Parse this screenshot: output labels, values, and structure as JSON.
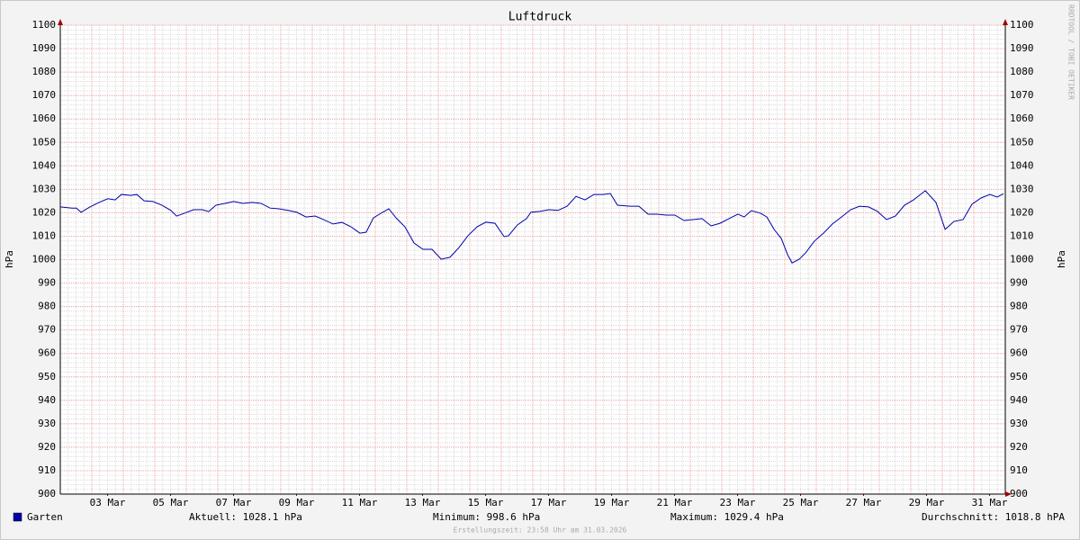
{
  "chart_data": {
    "type": "line",
    "title": "Luftdruck",
    "ylabel": "hPa",
    "watermark": "RRDTOOL / TOBI OETIKER",
    "footer": "Erstellungszeit: 23:58 Uhr am 31.03.2026",
    "stats": [
      "Aktuell: 1028.1 hPa",
      "Minimum: 998.6 hPa",
      "Maximum: 1029.4 hPa",
      "Durchschnitt: 1018.8 hPA"
    ],
    "xlim": [
      2,
      32
    ],
    "xticks": [
      {
        "value": 3.5,
        "label": "03 Mar"
      },
      {
        "value": 5.5,
        "label": "05 Mar"
      },
      {
        "value": 7.5,
        "label": "07 Mar"
      },
      {
        "value": 9.5,
        "label": "09 Mar"
      },
      {
        "value": 11.5,
        "label": "11 Mar"
      },
      {
        "value": 13.5,
        "label": "13 Mar"
      },
      {
        "value": 15.5,
        "label": "15 Mar"
      },
      {
        "value": 17.5,
        "label": "17 Mar"
      },
      {
        "value": 19.5,
        "label": "19 Mar"
      },
      {
        "value": 21.5,
        "label": "21 Mar"
      },
      {
        "value": 23.5,
        "label": "23 Mar"
      },
      {
        "value": 25.5,
        "label": "25 Mar"
      },
      {
        "value": 27.5,
        "label": "27 Mar"
      },
      {
        "value": 29.5,
        "label": "29 Mar"
      },
      {
        "value": 31.5,
        "label": "31 Mar"
      }
    ],
    "ylim": [
      900,
      1100
    ],
    "yticks": [
      900,
      910,
      920,
      930,
      940,
      950,
      960,
      970,
      980,
      990,
      1000,
      1010,
      1020,
      1030,
      1040,
      1050,
      1060,
      1070,
      1080,
      1090,
      1100
    ],
    "grid": true,
    "x": [
      2.0,
      2.37,
      2.51,
      2.66,
      2.94,
      3.23,
      3.51,
      3.74,
      3.94,
      4.23,
      4.43,
      4.66,
      4.94,
      5.23,
      5.51,
      5.69,
      5.94,
      6.23,
      6.51,
      6.71,
      6.94,
      7.23,
      7.51,
      7.8,
      8.09,
      8.37,
      8.66,
      8.94,
      9.23,
      9.51,
      9.8,
      10.09,
      10.37,
      10.66,
      10.94,
      11.23,
      11.51,
      11.71,
      11.94,
      12.23,
      12.43,
      12.66,
      12.94,
      13.23,
      13.51,
      13.8,
      14.09,
      14.37,
      14.66,
      14.94,
      15.23,
      15.51,
      15.8,
      16.09,
      16.23,
      16.51,
      16.8,
      16.94,
      17.23,
      17.51,
      17.8,
      18.09,
      18.37,
      18.66,
      18.94,
      19.23,
      19.46,
      19.69,
      20.09,
      20.37,
      20.66,
      20.94,
      21.23,
      21.51,
      21.8,
      22.09,
      22.37,
      22.66,
      22.94,
      23.23,
      23.51,
      23.71,
      23.94,
      24.23,
      24.43,
      24.66,
      24.89,
      25.09,
      25.23,
      25.46,
      25.66,
      25.94,
      26.23,
      26.51,
      26.8,
      27.09,
      27.37,
      27.66,
      27.94,
      28.23,
      28.51,
      28.8,
      29.09,
      29.46,
      29.8,
      30.09,
      30.37,
      30.66,
      30.94,
      31.23,
      31.51,
      31.74,
      31.94
    ],
    "series": [
      {
        "name": "Garten",
        "color": "#0000aa",
        "values": [
          1022.5,
          1022,
          1022,
          1020.2,
          1022.5,
          1024.4,
          1026,
          1025.5,
          1027.8,
          1027.4,
          1027.8,
          1025.1,
          1024.8,
          1023.2,
          1021,
          1018.6,
          1019.8,
          1021.3,
          1021.3,
          1020.5,
          1023.2,
          1024,
          1024.8,
          1024,
          1024.4,
          1024,
          1022,
          1021.7,
          1021,
          1020.2,
          1018.2,
          1018.6,
          1017,
          1015.2,
          1015.9,
          1014,
          1011.3,
          1011.7,
          1017.8,
          1020.2,
          1021.7,
          1017.8,
          1014,
          1007.1,
          1004.4,
          1004.4,
          1000.2,
          1001,
          1005.2,
          1010.2,
          1014,
          1016,
          1015.5,
          1009.8,
          1010.2,
          1014.8,
          1017.5,
          1020.2,
          1020.6,
          1021.3,
          1021,
          1022.8,
          1027,
          1025.5,
          1027.8,
          1027.8,
          1028.2,
          1023.2,
          1022.8,
          1022.8,
          1019.4,
          1019.4,
          1019,
          1019,
          1016.7,
          1017.1,
          1017.5,
          1014.4,
          1015.5,
          1017.5,
          1019.4,
          1018.2,
          1020.9,
          1019.8,
          1018.2,
          1012.9,
          1009,
          1002.1,
          998.6,
          1000.2,
          1002.9,
          1007.9,
          1011.3,
          1015.2,
          1018.2,
          1021.3,
          1022.8,
          1022.5,
          1020.6,
          1017.1,
          1018.6,
          1023.2,
          1025.5,
          1029.4,
          1024.4,
          1012.9,
          1016.3,
          1017.1,
          1023.6,
          1026.3,
          1027.8,
          1026.7,
          1028.1
        ]
      }
    ]
  }
}
